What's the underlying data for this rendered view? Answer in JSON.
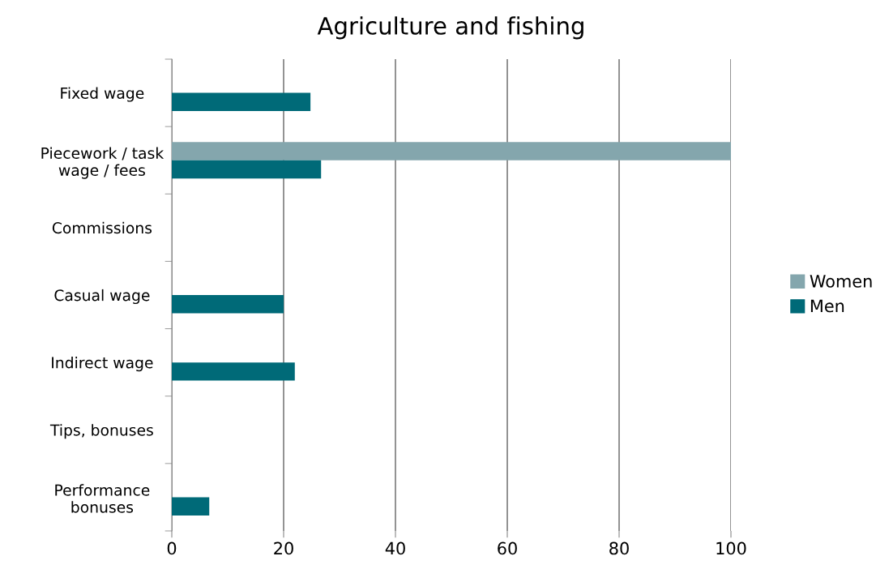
{
  "chart_data": {
    "type": "bar",
    "orientation": "horizontal",
    "title": "Agriculture and fishing",
    "categories": [
      "Fixed wage",
      "Piecework / task\nwage / fees",
      "Commissions",
      "Casual wage",
      "Indirect wage",
      "Tips, bonuses",
      "Performance\nbonuses"
    ],
    "series": [
      {
        "name": "Women",
        "color": "#84a6ad",
        "values": [
          null,
          100,
          null,
          null,
          null,
          null,
          null
        ]
      },
      {
        "name": "Men",
        "color": "#006a78",
        "values": [
          24.8,
          26.7,
          null,
          20.0,
          22.0,
          null,
          6.7
        ]
      }
    ],
    "xlim": [
      0,
      100
    ],
    "xticks": [
      0,
      20,
      40,
      60,
      80,
      100
    ],
    "grid": "x",
    "legend": "right"
  }
}
